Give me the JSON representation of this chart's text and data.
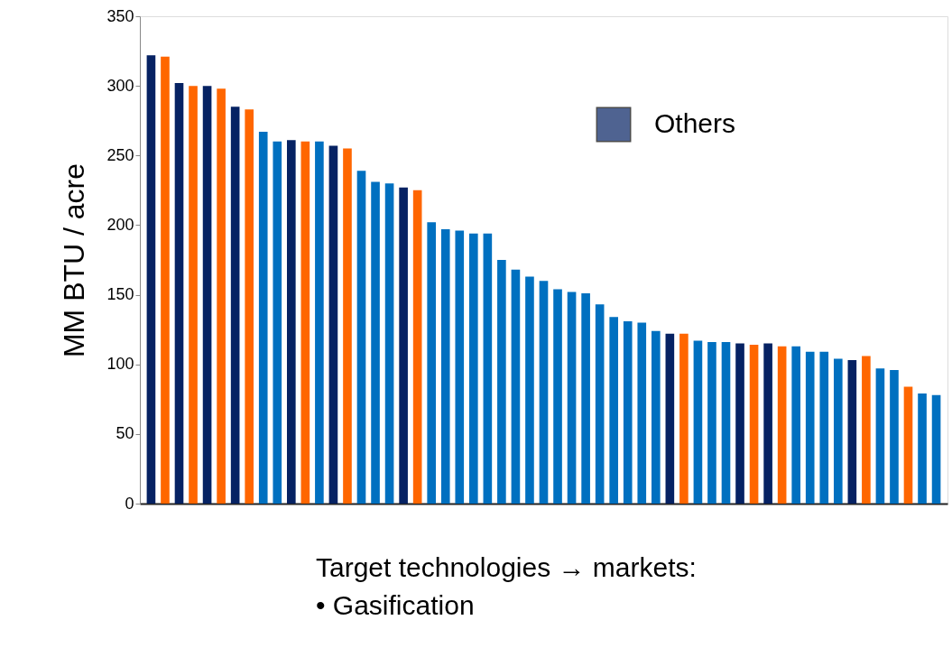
{
  "chart_data": {
    "type": "bar",
    "ylabel": "MM BTU / acre",
    "categories": [
      null,
      null,
      null,
      null,
      null,
      null,
      null,
      null,
      null,
      null,
      null,
      null,
      null,
      null,
      null,
      null,
      null,
      null,
      null,
      null,
      null,
      null,
      null,
      null,
      null,
      null,
      null,
      null,
      null,
      null,
      null,
      null,
      null,
      null,
      null,
      null,
      null,
      null,
      null,
      null,
      null,
      null,
      null,
      null,
      null,
      null,
      null,
      null,
      null,
      null,
      null,
      null,
      null,
      null,
      null,
      null,
      null
    ],
    "series": [
      {
        "color": "#ff6600",
        "values": [
          null,
          321,
          null,
          300,
          null,
          298,
          null,
          283,
          null,
          null,
          null,
          260,
          null,
          null,
          255,
          null,
          null,
          null,
          null,
          225,
          null,
          null,
          null,
          null,
          null,
          null,
          null,
          null,
          null,
          null,
          null,
          null,
          null,
          null,
          null,
          null,
          null,
          null,
          122,
          null,
          null,
          null,
          null,
          114,
          null,
          113,
          null,
          null,
          null,
          null,
          null,
          106,
          null,
          null,
          84,
          null,
          null
        ]
      },
      {
        "name": "Others",
        "color": "#062263",
        "values": [
          322,
          null,
          302,
          null,
          300,
          null,
          285,
          null,
          null,
          null,
          261,
          null,
          null,
          257,
          null,
          null,
          null,
          null,
          227,
          null,
          null,
          null,
          null,
          null,
          null,
          null,
          null,
          null,
          null,
          null,
          null,
          null,
          null,
          null,
          null,
          null,
          null,
          122,
          null,
          null,
          null,
          null,
          115,
          null,
          115,
          null,
          null,
          null,
          null,
          null,
          103,
          null,
          null,
          null,
          null,
          null,
          null
        ]
      },
      {
        "color": "#0070c0",
        "values": [
          null,
          null,
          null,
          null,
          null,
          null,
          null,
          null,
          267,
          260,
          null,
          null,
          260,
          null,
          null,
          239,
          231,
          230,
          null,
          null,
          202,
          197,
          196,
          194,
          194,
          175,
          168,
          163,
          160,
          154,
          152,
          151,
          143,
          134,
          131,
          130,
          124,
          null,
          null,
          117,
          116,
          116,
          null,
          null,
          null,
          null,
          113,
          109,
          109,
          104,
          null,
          null,
          97,
          96,
          null,
          79,
          78
        ]
      }
    ],
    "ylim": [
      0,
      350
    ],
    "yticks": [
      0,
      50,
      100,
      150,
      200,
      250,
      300,
      350
    ],
    "grid": false,
    "legend": "top right",
    "tick_labels": "y",
    "annotations": [
      "Target technologies → markets:",
      "•   Gasification"
    ]
  }
}
